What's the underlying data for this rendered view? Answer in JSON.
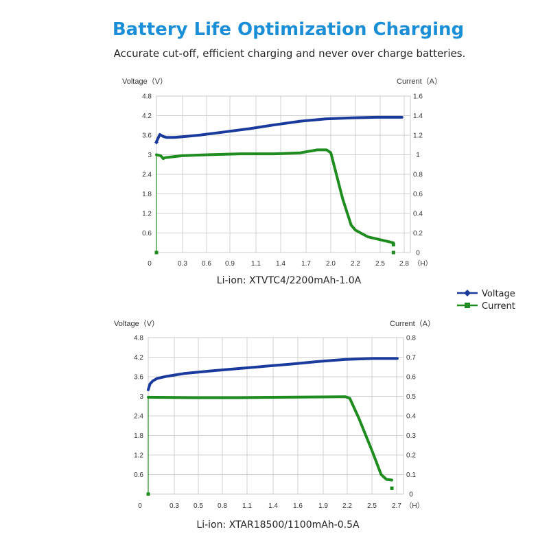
{
  "title": "Battery Life Optimization Charging",
  "subtitle": "Accurate cut-off, efficient charging and never over charge batteries.",
  "legend": {
    "position": "right-middle",
    "items": [
      {
        "label": "Voltage",
        "color": "#1a3a9c",
        "marker": "diamond"
      },
      {
        "label": "Current",
        "color": "#1e8c1e",
        "marker": "square"
      }
    ]
  },
  "chart_data": [
    {
      "type": "line",
      "caption": "Li-ion: XTVTC4/2200mAh-1.0A",
      "ylabel_left": "Voltage（V）",
      "ylabel_right": "Current（A）",
      "xunit": "（H）",
      "x_ticks": [
        "0",
        "0.3",
        "0.6",
        "0.9",
        "1.1",
        "1.4",
        "1.7",
        "2.0",
        "2.2",
        "2.5",
        "2.8"
      ],
      "y_left_ticks": [
        "4.8",
        "4.2",
        "3.6",
        "3",
        "2.4",
        "1.8",
        "1.2",
        "0.6"
      ],
      "y_right_ticks": [
        "1.6",
        "1.4",
        "1.2",
        "1",
        "0.8",
        "0.6",
        "0.4",
        "0.2",
        "0"
      ],
      "xlim": [
        0,
        3.0
      ],
      "ylim_left": [
        0,
        4.8
      ],
      "ylim_right": [
        0,
        1.6
      ],
      "grid": true,
      "series": [
        {
          "name": "Voltage",
          "axis": "left",
          "color": "#1a3a9c",
          "x": [
            0.0,
            0.04,
            0.08,
            0.12,
            0.2,
            0.3,
            0.5,
            0.8,
            1.1,
            1.4,
            1.7,
            2.0,
            2.3,
            2.6,
            2.9
          ],
          "y": [
            3.4,
            3.62,
            3.56,
            3.53,
            3.53,
            3.55,
            3.6,
            3.7,
            3.8,
            3.92,
            4.03,
            4.1,
            4.13,
            4.15,
            4.15
          ],
          "markers": [
            {
              "x": 0.0,
              "y": 3.38
            }
          ]
        },
        {
          "name": "Current",
          "axis": "right",
          "color": "#1e8c1e",
          "x": [
            0.0,
            0.05,
            0.08,
            0.1,
            0.3,
            0.6,
            1.0,
            1.4,
            1.7,
            1.9,
            2.01,
            2.06,
            2.2,
            2.3,
            2.35,
            2.5,
            2.7,
            2.8
          ],
          "y": [
            1.0,
            0.99,
            0.96,
            0.97,
            0.99,
            1.0,
            1.01,
            1.01,
            1.02,
            1.05,
            1.05,
            1.02,
            0.55,
            0.28,
            0.23,
            0.16,
            0.12,
            0.1
          ],
          "markers": [
            {
              "x": 0.0,
              "y": 0.0
            },
            {
              "x": 2.8,
              "y": 0.0
            },
            {
              "x": 2.8,
              "y": 0.08
            }
          ]
        }
      ]
    },
    {
      "type": "line",
      "caption": "Li-ion: XTAR18500/1100mAh-0.5A",
      "ylabel_left": "Voltage（V）",
      "ylabel_right": "Current（A）",
      "xunit": "（H）",
      "x_ticks": [
        "0",
        "0.3",
        "0.5",
        "0.8",
        "1.1",
        "1.4",
        "1.6",
        "1.9",
        "2.2",
        "2.5",
        "2.7"
      ],
      "y_left_ticks": [
        "4.8",
        "4.2",
        "3.6",
        "3",
        "2.4",
        "1.8",
        "1.2",
        "0.6"
      ],
      "y_right_ticks": [
        "0.8",
        "0.7",
        "0.6",
        "0.5",
        "0.4",
        "0.3",
        "0.2",
        "0.1",
        "0"
      ],
      "xlim": [
        0,
        2.85
      ],
      "ylim_left": [
        0,
        4.8
      ],
      "ylim_right": [
        0,
        0.8
      ],
      "grid": true,
      "series": [
        {
          "name": "Voltage",
          "axis": "left",
          "color": "#1a3a9c",
          "x": [
            0.0,
            0.02,
            0.05,
            0.1,
            0.2,
            0.4,
            0.7,
            1.0,
            1.3,
            1.6,
            1.9,
            2.2,
            2.5,
            2.78
          ],
          "y": [
            3.2,
            3.38,
            3.47,
            3.55,
            3.61,
            3.7,
            3.78,
            3.85,
            3.92,
            3.99,
            4.07,
            4.13,
            4.16,
            4.16
          ],
          "markers": []
        },
        {
          "name": "Current",
          "axis": "right",
          "color": "#1e8c1e",
          "x": [
            0.0,
            0.5,
            1.0,
            1.5,
            2.0,
            2.2,
            2.25,
            2.35,
            2.5,
            2.6,
            2.66,
            2.72
          ],
          "y": [
            0.495,
            0.493,
            0.493,
            0.495,
            0.497,
            0.498,
            0.49,
            0.39,
            0.22,
            0.1,
            0.075,
            0.072
          ],
          "markers": [
            {
              "x": 0.0,
              "y": 0.0
            },
            {
              "x": 2.72,
              "y": 0.03
            }
          ]
        }
      ]
    }
  ]
}
